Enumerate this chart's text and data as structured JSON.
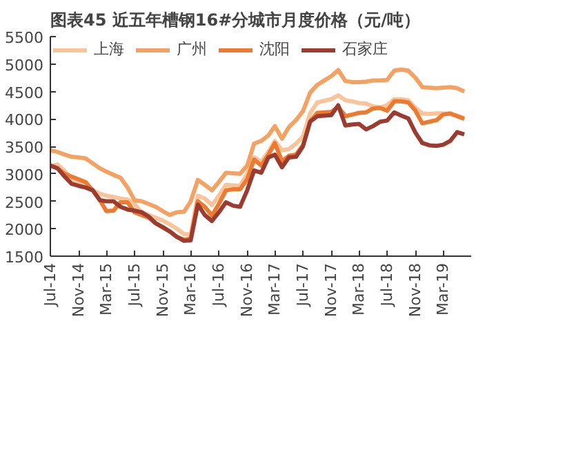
{
  "chart_data": {
    "type": "line",
    "title": "图表45    近五年槽钢16#分城市月度价格（元/吨）",
    "x": [
      "2014-07",
      "2014-08",
      "2014-09",
      "2014-10",
      "2014-11",
      "2014-12",
      "2015-01",
      "2015-02",
      "2015-03",
      "2015-04",
      "2015-05",
      "2015-06",
      "2015-07",
      "2015-08",
      "2015-09",
      "2015-10",
      "2015-11",
      "2015-12",
      "2016-01",
      "2016-02",
      "2016-03",
      "2016-04",
      "2016-05",
      "2016-06",
      "2016-07",
      "2016-08",
      "2016-09",
      "2016-10",
      "2016-11",
      "2016-12",
      "2017-01",
      "2017-02",
      "2017-03",
      "2017-04",
      "2017-05",
      "2017-06",
      "2017-07",
      "2017-08",
      "2017-09",
      "2017-10",
      "2017-11",
      "2017-12",
      "2018-01",
      "2018-02",
      "2018-03",
      "2018-04",
      "2018-05",
      "2018-06",
      "2018-07",
      "2018-08",
      "2018-09",
      "2018-10",
      "2018-11",
      "2018-12",
      "2019-01",
      "2019-02",
      "2019-03",
      "2019-04",
      "2019-05",
      "2019-06"
    ],
    "series": [
      {
        "name": "上海",
        "color": "#f9c49a",
        "values": [
          3140,
          3170,
          3050,
          2900,
          2850,
          2800,
          2700,
          2640,
          2600,
          2580,
          2550,
          2530,
          2450,
          2300,
          2250,
          2200,
          2150,
          2080,
          2000,
          1900,
          1900,
          2600,
          2550,
          2430,
          2600,
          2800,
          2790,
          2780,
          3000,
          3300,
          3220,
          3400,
          3600,
          3430,
          3450,
          3550,
          3680,
          4100,
          4300,
          4330,
          4360,
          4430,
          4340,
          4320,
          4290,
          4280,
          4230,
          4210,
          4250,
          4360,
          4360,
          4340,
          4200,
          4100,
          4090,
          4100,
          4100,
          4090,
          4060,
          4020
        ]
      },
      {
        "name": "广州",
        "color": "#f4a263",
        "values": [
          3430,
          3400,
          3350,
          3310,
          3300,
          3280,
          3190,
          3100,
          3040,
          2980,
          2930,
          2750,
          2520,
          2500,
          2450,
          2400,
          2320,
          2250,
          2300,
          2310,
          2500,
          2890,
          2800,
          2700,
          2850,
          3020,
          3010,
          3000,
          3150,
          3550,
          3600,
          3700,
          3870,
          3640,
          3850,
          3980,
          4140,
          4480,
          4620,
          4700,
          4780,
          4890,
          4690,
          4670,
          4670,
          4680,
          4700,
          4700,
          4710,
          4880,
          4900,
          4880,
          4750,
          4580,
          4570,
          4560,
          4570,
          4580,
          4560,
          4500
        ]
      },
      {
        "name": "沈阳",
        "color": "#ec7a30",
        "values": [
          3150,
          3100,
          3000,
          2950,
          2900,
          2850,
          2700,
          2520,
          2320,
          2330,
          2480,
          2480,
          2300,
          2250,
          2200,
          2100,
          2020,
          1950,
          1850,
          1800,
          1820,
          2500,
          2400,
          2240,
          2450,
          2700,
          2720,
          2720,
          2900,
          3260,
          3150,
          3350,
          3560,
          3230,
          3330,
          3350,
          3520,
          3950,
          4110,
          4120,
          4130,
          4220,
          4050,
          4080,
          4110,
          4120,
          4190,
          4200,
          4150,
          4320,
          4320,
          4300,
          4150,
          3920,
          3950,
          3980,
          4080,
          4100,
          4050,
          4000
        ]
      },
      {
        "name": "石家庄",
        "color": "#9c3b30",
        "values": [
          3150,
          3100,
          2950,
          2820,
          2780,
          2750,
          2700,
          2520,
          2500,
          2500,
          2400,
          2350,
          2330,
          2300,
          2220,
          2100,
          2030,
          1950,
          1850,
          1780,
          1790,
          2440,
          2250,
          2140,
          2300,
          2480,
          2420,
          2400,
          2700,
          3060,
          3020,
          3300,
          3350,
          3120,
          3300,
          3310,
          3500,
          3950,
          4050,
          4060,
          4070,
          4250,
          3880,
          3900,
          3910,
          3810,
          3870,
          3950,
          3970,
          4120,
          4060,
          4010,
          3750,
          3560,
          3520,
          3510,
          3530,
          3600,
          3760,
          3720
        ]
      }
    ],
    "xlim": [
      "2014-07",
      "2019-07"
    ],
    "xticks": [
      {
        "value": "2014-07",
        "label": "Jul-14"
      },
      {
        "value": "2014-11",
        "label": "Nov-14"
      },
      {
        "value": "2015-03",
        "label": "Mar-15"
      },
      {
        "value": "2015-07",
        "label": "Jul-15"
      },
      {
        "value": "2015-11",
        "label": "Nov-15"
      },
      {
        "value": "2016-03",
        "label": "Mar-16"
      },
      {
        "value": "2016-07",
        "label": "Jul-16"
      },
      {
        "value": "2016-11",
        "label": "Nov-16"
      },
      {
        "value": "2017-03",
        "label": "Mar-17"
      },
      {
        "value": "2017-07",
        "label": "Jul-17"
      },
      {
        "value": "2017-11",
        "label": "Nov-17"
      },
      {
        "value": "2018-03",
        "label": "Mar-18"
      },
      {
        "value": "2018-07",
        "label": "Jul-18"
      },
      {
        "value": "2018-11",
        "label": "Nov-18"
      },
      {
        "value": "2019-03",
        "label": "Mar-19"
      }
    ],
    "ylim": [
      1500,
      5500
    ],
    "yticks": [
      1500,
      2000,
      2500,
      3000,
      3500,
      4000,
      4500,
      5000,
      5500
    ],
    "legend": "top",
    "grid": false,
    "marker": "none",
    "line_style": "solid"
  }
}
